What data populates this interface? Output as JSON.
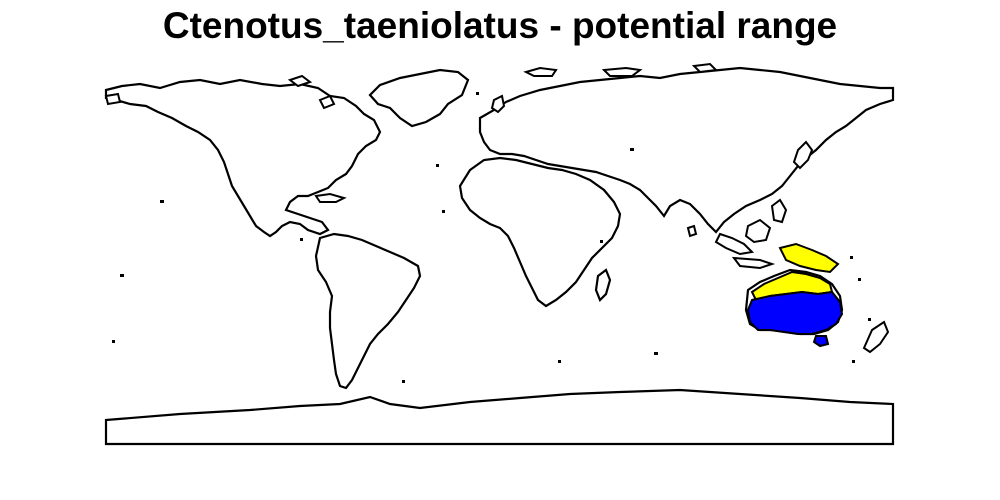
{
  "title": "Ctenotus_taeniolatus - potential range",
  "species": "Ctenotus_taeniolatus",
  "legend": {
    "colors": {
      "outline": "#000000",
      "background": "#ffffff",
      "range_high": "#0000ff",
      "range_low": "#ffff00"
    }
  }
}
